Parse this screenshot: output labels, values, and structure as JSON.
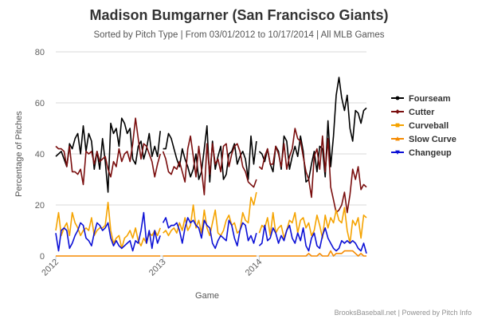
{
  "chart_data": {
    "type": "line",
    "title": "Madison Bumgarner (San Francisco Giants)",
    "subtitle": "Sorted by Pitch Type | From 03/01/2012 to 10/17/2014 | All MLB Games",
    "xlabel": "Game",
    "ylabel": "Percentage of Pitches",
    "ylim": [
      0,
      80
    ],
    "yticks": [
      0,
      20,
      40,
      60,
      80
    ],
    "xticks": [
      {
        "label": "2012",
        "game": 0
      },
      {
        "label": "2013",
        "game": 39
      },
      {
        "label": "2014",
        "game": 74
      }
    ],
    "x_count": 114,
    "segments": [
      [
        0,
        38
      ],
      [
        39,
        73
      ],
      [
        74,
        113
      ]
    ],
    "grid": true,
    "legend_position": "right",
    "credits": "BrooksBaseball.net | Powered by Pitch Info",
    "series": [
      {
        "name": "Fourseam",
        "color": "#000000",
        "marker": "circle",
        "values": [
          39,
          40,
          41,
          38,
          35,
          44,
          42,
          46,
          48,
          40,
          51,
          41,
          48,
          45,
          34,
          41,
          34,
          46,
          37,
          25,
          52,
          48,
          50,
          43,
          54,
          52,
          48,
          50,
          38,
          36,
          43,
          45,
          38,
          42,
          48,
          39,
          43,
          39,
          49,
          42,
          42,
          48,
          46,
          42,
          38,
          35,
          42,
          38,
          35,
          31,
          34,
          40,
          30,
          33,
          42,
          51,
          29,
          45,
          34,
          39,
          43,
          30,
          32,
          40,
          41,
          44,
          36,
          39,
          41,
          38,
          30,
          47,
          36,
          45,
          41,
          40,
          37,
          42,
          36,
          33,
          43,
          41,
          34,
          47,
          45,
          34,
          39,
          43,
          39,
          47,
          41,
          29,
          30,
          36,
          41,
          33,
          43,
          42,
          31,
          53,
          35,
          47,
          63,
          70,
          62,
          57,
          63,
          50,
          45,
          57,
          56,
          52,
          57,
          58
        ]
      },
      {
        "name": "Cutter",
        "color": "#7a0e0e",
        "marker": "diamond",
        "values": [
          43,
          42,
          42,
          41,
          35,
          43,
          33,
          33,
          32,
          34,
          28,
          41,
          40,
          41,
          36,
          41,
          37,
          38,
          39,
          34,
          31,
          37,
          35,
          42,
          37,
          40,
          41,
          37,
          44,
          54,
          46,
          38,
          44,
          43,
          40,
          37,
          31,
          36,
          40,
          41,
          38,
          33,
          32,
          35,
          34,
          37,
          33,
          29,
          42,
          47,
          39,
          31,
          43,
          34,
          24,
          44,
          32,
          44,
          36,
          38,
          33,
          43,
          44,
          35,
          40,
          43,
          44,
          41,
          35,
          33,
          29,
          28,
          27,
          30,
          35,
          34,
          39,
          42,
          36,
          36,
          43,
          40,
          35,
          44,
          34,
          39,
          42,
          50,
          46,
          45,
          39,
          33,
          30,
          23,
          39,
          42,
          34,
          47,
          33,
          46,
          27,
          22,
          17,
          18,
          20,
          25,
          17,
          24,
          34,
          30,
          35,
          26,
          28,
          27
        ]
      },
      {
        "name": "Curveball",
        "color": "#f5a300",
        "marker": "square",
        "values": [
          10,
          17,
          8,
          11,
          13,
          8,
          17,
          13,
          11,
          8,
          10,
          11,
          10,
          15,
          8,
          10,
          11,
          11,
          12,
          21,
          10,
          5,
          7,
          8,
          3,
          7,
          8,
          10,
          7,
          11,
          6,
          4,
          7,
          5,
          9,
          8,
          10,
          8,
          11,
          9,
          10,
          8,
          10,
          11,
          9,
          13,
          10,
          15,
          10,
          12,
          20,
          11,
          14,
          9,
          18,
          11,
          8,
          13,
          18,
          9,
          8,
          10,
          14,
          16,
          12,
          13,
          9,
          10,
          17,
          14,
          13,
          23,
          20,
          25,
          9,
          12,
          11,
          15,
          8,
          17,
          9,
          11,
          12,
          7,
          10,
          14,
          13,
          17,
          9,
          14,
          15,
          11,
          13,
          8,
          10,
          16,
          12,
          7,
          16,
          11,
          15,
          13,
          18,
          14,
          13,
          19,
          10,
          5,
          14,
          12,
          15,
          7,
          16,
          15
        ]
      },
      {
        "name": "Slow Curve",
        "color": "#f58a00",
        "marker": "triangle",
        "values": [
          0,
          0,
          0,
          0,
          0,
          0,
          0,
          0,
          0,
          0,
          0,
          0,
          0,
          0,
          0,
          0,
          0,
          0,
          0,
          0,
          0,
          0,
          0,
          0,
          0,
          0,
          0,
          0,
          0,
          0,
          0,
          0,
          0,
          0,
          0,
          0,
          0,
          0,
          0,
          0,
          0,
          0,
          0,
          0,
          0,
          0,
          0,
          0,
          0,
          0,
          0,
          0,
          0,
          0,
          0,
          0,
          0,
          0,
          0,
          0,
          0,
          0,
          0,
          0,
          0,
          0,
          0,
          0,
          0,
          0,
          0,
          0,
          0,
          0,
          0,
          0,
          0,
          0,
          0,
          0,
          0,
          0,
          0,
          0,
          0,
          0,
          0,
          0,
          0,
          0,
          0,
          0,
          1,
          0,
          0,
          0,
          1,
          0,
          0,
          0,
          2,
          0,
          1,
          1,
          1,
          2,
          2,
          2,
          2,
          1,
          0,
          1,
          0,
          0
        ]
      },
      {
        "name": "Changeup",
        "color": "#0c10d6",
        "marker": "triangle-down",
        "values": [
          9,
          2,
          10,
          11,
          10,
          3,
          5,
          8,
          10,
          13,
          12,
          7,
          6,
          4,
          9,
          13,
          12,
          10,
          11,
          13,
          7,
          4,
          6,
          4,
          3,
          4,
          5,
          6,
          2,
          6,
          5,
          10,
          17,
          5,
          10,
          3,
          10,
          5,
          8,
          13,
          15,
          11,
          12,
          12,
          13,
          10,
          5,
          11,
          15,
          13,
          14,
          12,
          11,
          7,
          14,
          12,
          11,
          5,
          3,
          6,
          8,
          7,
          6,
          14,
          12,
          7,
          4,
          10,
          13,
          12,
          6,
          8,
          5,
          9,
          4,
          5,
          12,
          6,
          7,
          11,
          9,
          5,
          8,
          6,
          10,
          12,
          7,
          5,
          9,
          6,
          11,
          4,
          2,
          7,
          9,
          4,
          3,
          8,
          11,
          7,
          5,
          3,
          2,
          3,
          6,
          5,
          6,
          5,
          6,
          5,
          3,
          2,
          5,
          1
        ]
      }
    ]
  }
}
